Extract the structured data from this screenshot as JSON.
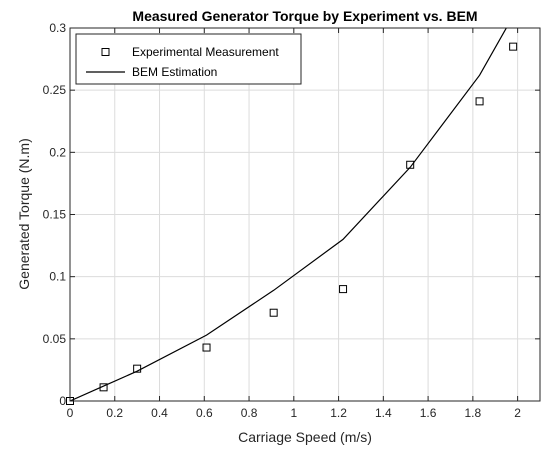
{
  "chart_data": {
    "type": "line",
    "title": "Measured Generator Torque by Experiment vs. BEM",
    "xlabel": "Carriage Speed (m/s)",
    "ylabel": "Generated Torque (N.m)",
    "xlim": [
      0,
      2.1
    ],
    "ylim": [
      0,
      0.3
    ],
    "xticks": [
      "0",
      "0.2",
      "0.4",
      "0.6",
      "0.8",
      "1",
      "1.2",
      "1.4",
      "1.6",
      "1.8",
      "2"
    ],
    "yticks": [
      "0",
      "0.05",
      "0.1",
      "0.15",
      "0.2",
      "0.25",
      "0.3"
    ],
    "grid": true,
    "legend_location": "top-left",
    "series": [
      {
        "name": "Experimental Measurement",
        "style": "markers",
        "marker": "square",
        "color": "#000000",
        "x": [
          0.0,
          0.15,
          0.3,
          0.61,
          0.91,
          1.22,
          1.52,
          1.83,
          1.98
        ],
        "y": [
          0.0,
          0.011,
          0.026,
          0.043,
          0.071,
          0.09,
          0.19,
          0.241,
          0.285
        ]
      },
      {
        "name": "BEM Estimation",
        "style": "line",
        "color": "#000000",
        "x": [
          0.0,
          0.15,
          0.3,
          0.61,
          0.91,
          1.22,
          1.52,
          1.83,
          2.0
        ],
        "y": [
          0.0,
          0.012,
          0.024,
          0.053,
          0.089,
          0.13,
          0.188,
          0.262,
          0.316
        ]
      }
    ]
  }
}
